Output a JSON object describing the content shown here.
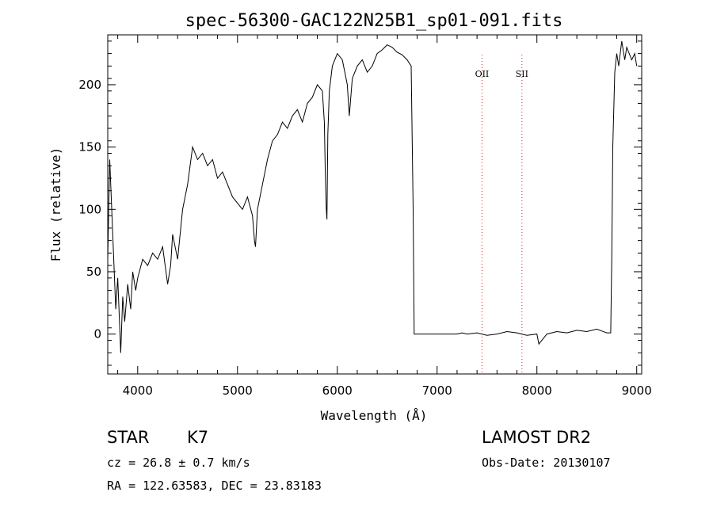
{
  "chart_data": {
    "type": "line",
    "title": "spec-56300-GAC122N25B1_sp01-091.fits",
    "xlabel": "Wavelength (Å)",
    "ylabel": "Flux (relative)",
    "xlim": [
      3700,
      9050
    ],
    "ylim": [
      -32,
      240
    ],
    "xticks": [
      4000,
      5000,
      6000,
      7000,
      8000,
      9000
    ],
    "yticks": [
      0,
      50,
      100,
      150,
      200
    ],
    "grid": false,
    "line_color": "#000000",
    "series": [
      {
        "x": [
          3700,
          3720,
          3750,
          3780,
          3800,
          3830,
          3850,
          3870,
          3900,
          3930,
          3950,
          3980,
          4000,
          4050,
          4100,
          4150,
          4200,
          4250,
          4300,
          4330,
          4350,
          4400,
          4450,
          4500,
          4550,
          4600,
          4650,
          4700,
          4750,
          4800,
          4850,
          4900,
          4950,
          5000,
          5050,
          5100,
          5150,
          5170,
          5180,
          5200,
          5250,
          5300,
          5350,
          5400,
          5450,
          5500,
          5550,
          5600,
          5650,
          5700,
          5750,
          5800,
          5850,
          5870,
          5880,
          5890,
          5896,
          5905,
          5920,
          5950,
          6000,
          6050,
          6100,
          6120,
          6150,
          6200,
          6250,
          6300,
          6350,
          6400,
          6450,
          6500,
          6550,
          6600,
          6650,
          6700,
          6740,
          6760,
          6770,
          6800,
          6900,
          7000,
          7100,
          7200,
          7250,
          7300,
          7400,
          7500,
          7600,
          7700,
          7800,
          7900,
          8000,
          8020,
          8100,
          8200,
          8300,
          8400,
          8500,
          8600,
          8700,
          8740,
          8750,
          8760,
          8780,
          8800,
          8820,
          8850,
          8880,
          8900,
          8950,
          8980,
          9000
        ],
        "y": [
          60,
          140,
          80,
          20,
          45,
          -15,
          30,
          10,
          40,
          20,
          50,
          35,
          45,
          60,
          55,
          65,
          60,
          70,
          40,
          55,
          80,
          60,
          100,
          120,
          150,
          140,
          145,
          135,
          140,
          125,
          130,
          120,
          110,
          105,
          100,
          110,
          95,
          75,
          70,
          100,
          120,
          140,
          155,
          160,
          170,
          165,
          175,
          180,
          170,
          185,
          190,
          200,
          195,
          170,
          130,
          100,
          92,
          160,
          195,
          215,
          225,
          220,
          200,
          175,
          205,
          215,
          220,
          210,
          215,
          225,
          228,
          232,
          230,
          226,
          224,
          220,
          215,
          100,
          0,
          0,
          0,
          0,
          0,
          0,
          1,
          0,
          1,
          -1,
          0,
          2,
          1,
          -1,
          0,
          -8,
          0,
          2,
          1,
          3,
          2,
          4,
          1,
          1,
          60,
          150,
          210,
          225,
          215,
          235,
          220,
          230,
          220,
          225,
          215
        ]
      }
    ],
    "annotations": [
      {
        "label": "OII",
        "x": 7450,
        "color": "#e02020"
      },
      {
        "label": "SII",
        "x": 7850,
        "color": "#e02020"
      }
    ]
  },
  "info": {
    "object_type": "STAR",
    "subclass": "K7",
    "survey": "LAMOST DR2",
    "cz": "cz = 26.8 ± 0.7 km/s",
    "obs_date": "Obs-Date: 20130107",
    "coords": "RA = 122.63583, DEC =  23.83183"
  }
}
